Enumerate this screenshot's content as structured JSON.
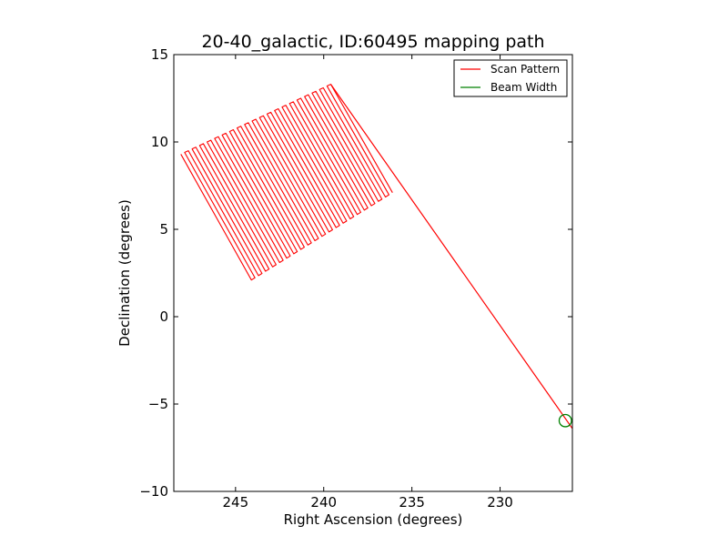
{
  "chart_data": {
    "type": "line",
    "title": "20-40_galactic, ID:60495 mapping path",
    "xlabel": "Right Ascension (degrees)",
    "ylabel": "Declination (degrees)",
    "xlim": [
      248.5,
      225.9
    ],
    "ylim": [
      -10,
      15
    ],
    "x_inverted": true,
    "xticks": [
      245,
      240,
      235,
      230
    ],
    "yticks": [
      -10,
      -5,
      0,
      5,
      10,
      15
    ],
    "grid": false,
    "legend_position": "top-right",
    "colors": {
      "scan": "#ff0000",
      "beam": "#008000"
    },
    "series": [
      {
        "name": "Scan Pattern",
        "raster": {
          "count": 41,
          "start_top": [
            248.1,
            9.3
          ],
          "start_bottom": [
            244.1,
            2.1
          ],
          "end_top": [
            239.6,
            13.3
          ],
          "end_bottom": [
            236.1,
            7.1
          ]
        },
        "transit": [
          [
            239.6,
            13.3
          ],
          [
            225.9,
            -6.4
          ]
        ]
      },
      {
        "name": "Beam Width",
        "center": [
          226.3,
          -5.95
        ],
        "radius_deg": 0.35
      }
    ]
  }
}
